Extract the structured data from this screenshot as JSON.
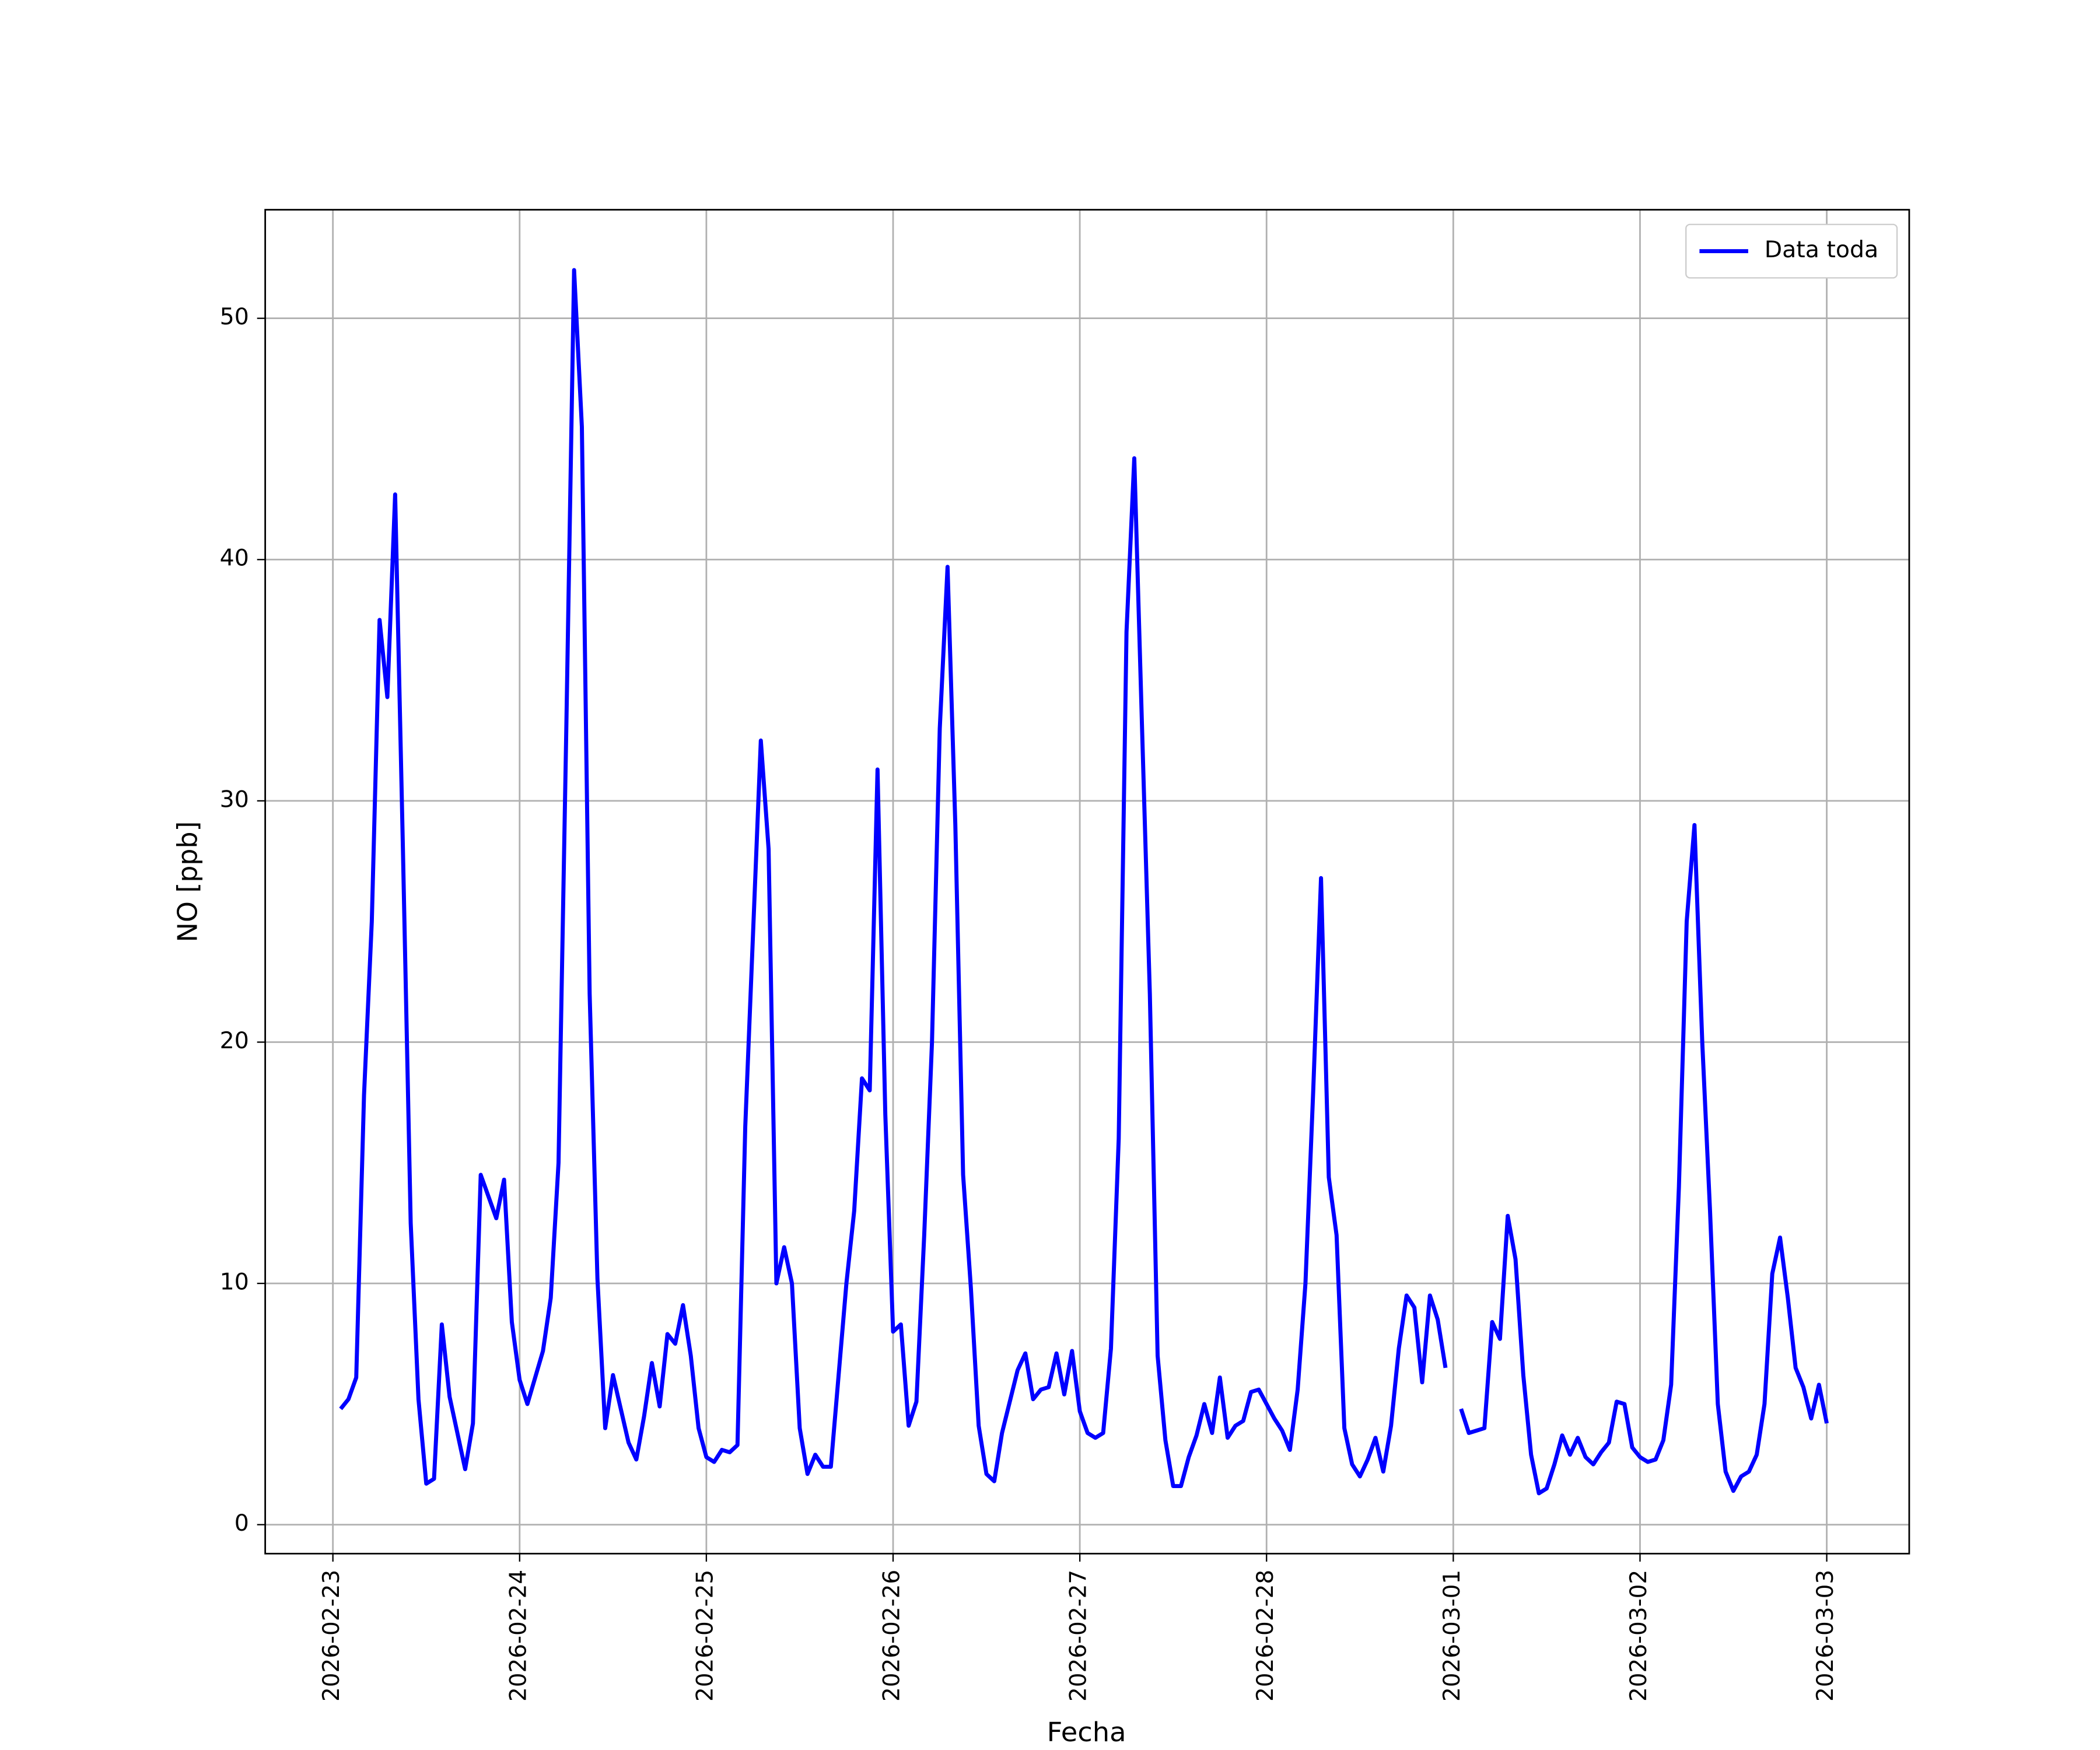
{
  "chart_data": {
    "type": "line",
    "x_label": "Fecha",
    "y_label": "NO [ppb]",
    "x": [
      1,
      2,
      3,
      4,
      5,
      6,
      7,
      8,
      9,
      10,
      11,
      12,
      13,
      14,
      15,
      16,
      17,
      18,
      19,
      20,
      21,
      22,
      23,
      24,
      25,
      26,
      27,
      28,
      29,
      30,
      31,
      32,
      33,
      34,
      35,
      36,
      37,
      38,
      39,
      40,
      41,
      42,
      43,
      44,
      45,
      46,
      47,
      48,
      49,
      50,
      51,
      52,
      53,
      54,
      55,
      56,
      57,
      58,
      59,
      60,
      61,
      62,
      63,
      64,
      65,
      66,
      67,
      68,
      69,
      70,
      71,
      72,
      73,
      74,
      75,
      76,
      77,
      78,
      79,
      80,
      81,
      82,
      83,
      84,
      85,
      86,
      87,
      88,
      89,
      90,
      91,
      92,
      93,
      94,
      95,
      96,
      97,
      98,
      99,
      100,
      101,
      102,
      103,
      104,
      105,
      106,
      107,
      108,
      109,
      110,
      111,
      112,
      113,
      114,
      115,
      116,
      117,
      118,
      119,
      120,
      121,
      122,
      123,
      124,
      125,
      126,
      127,
      128,
      129,
      130,
      131,
      132,
      133,
      134,
      135,
      136,
      137,
      138,
      139,
      140,
      141,
      142,
      143,
      144,
      145,
      146,
      147,
      148,
      149,
      150,
      151,
      152,
      153,
      154,
      155,
      156,
      157,
      158,
      159,
      160,
      161,
      162,
      163,
      164,
      165,
      166,
      167,
      168,
      169,
      170,
      171,
      172,
      173,
      174,
      175,
      176,
      177,
      178,
      179,
      180,
      181,
      182,
      183,
      184,
      185,
      186,
      187,
      188,
      189,
      190,
      191,
      192
    ],
    "series": [
      {
        "name": "Data toda",
        "color": "#0000ff",
        "values": [
          4.8,
          5.2,
          6.1,
          17.8,
          25,
          37.5,
          34.3,
          42.7,
          28,
          12.5,
          5.2,
          1.7,
          1.9,
          8.3,
          5.3,
          3.8,
          2.3,
          4.2,
          14.5,
          13.6,
          12.7,
          14.3,
          8.4,
          6,
          5,
          6.1,
          7.2,
          9.4,
          15,
          33,
          52,
          45.5,
          22,
          10.2,
          4,
          6.2,
          4.8,
          3.4,
          2.7,
          4.5,
          6.7,
          4.9,
          7.9,
          7.5,
          9.1,
          7,
          4,
          2.8,
          2.6,
          3.1,
          3,
          3.3,
          16.5,
          24.5,
          32.5,
          28,
          10,
          11.5,
          10,
          4,
          2.1,
          2.9,
          2.4,
          2.4,
          6.2,
          10,
          13,
          18.5,
          18,
          31.3,
          17,
          8,
          8.3,
          4.1,
          5.1,
          12,
          20,
          33,
          39.7,
          29,
          14.5,
          9.8,
          4.1,
          2.1,
          1.8,
          3.8,
          5.1,
          6.4,
          7.1,
          5.2,
          5.6,
          5.7,
          7.1,
          5.4,
          7.2,
          4.7,
          3.8,
          3.6,
          3.8,
          7.3,
          16,
          37,
          44.2,
          33,
          22,
          7,
          3.5,
          1.6,
          1.6,
          2.8,
          3.7,
          5,
          3.8,
          6.1,
          3.6,
          4.1,
          4.3,
          5.5,
          5.6,
          5,
          4.4,
          3.9,
          3.1,
          5.6,
          10,
          18,
          26.8,
          14.4,
          12,
          4,
          2.5,
          2,
          2.7,
          3.6,
          2.2,
          4.1,
          7.3,
          9.5,
          9,
          5.9,
          9.5,
          8.5,
          6.5,
          null,
          4.8,
          3.8,
          3.9,
          4,
          8.4,
          7.7,
          12.8,
          11,
          6.2,
          2.9,
          1.3,
          1.5,
          2.5,
          3.7,
          2.9,
          3.6,
          2.8,
          2.5,
          3,
          3.4,
          5.1,
          5,
          3.2,
          2.8,
          2.6,
          2.7,
          3.5,
          5.8,
          14,
          25,
          29,
          20,
          13,
          5,
          2.2,
          1.4,
          2,
          2.2,
          2.9,
          5,
          10.4,
          11.9,
          9.4,
          6.5,
          5.7,
          4.4,
          5.8,
          4.2
        ]
      }
    ],
    "xlim": [
      -8.7,
      202.6
    ],
    "xticks": [
      {
        "value": 0,
        "label": "2026-02-23"
      },
      {
        "value": 24,
        "label": "2026-02-24"
      },
      {
        "value": 48,
        "label": "2026-02-25"
      },
      {
        "value": 72,
        "label": "2026-02-26"
      },
      {
        "value": 96,
        "label": "2026-02-27"
      },
      {
        "value": 120,
        "label": "2026-02-28"
      },
      {
        "value": 144,
        "label": "2026-03-01"
      },
      {
        "value": 168,
        "label": "2026-03-02"
      },
      {
        "value": 192,
        "label": "2026-03-03"
      }
    ],
    "ylim": [
      -1.2,
      54.5
    ],
    "yticks": [
      0,
      10,
      20,
      30,
      40,
      50
    ],
    "grid": true,
    "legend": "upper right"
  }
}
